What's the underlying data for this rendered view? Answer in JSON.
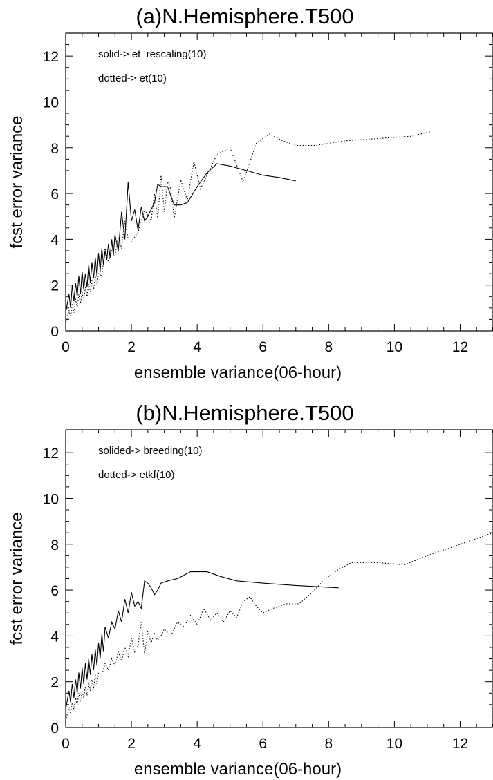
{
  "chart_data": [
    {
      "type": "line",
      "title": "(a)N.Hemisphere.T500",
      "xlabel": "ensemble variance(06-hour)",
      "ylabel": "fcst error variance",
      "xlim": [
        0,
        13
      ],
      "ylim": [
        0,
        13
      ],
      "xticks": [
        0,
        2,
        4,
        6,
        8,
        10,
        12
      ],
      "yticks": [
        0,
        2,
        4,
        6,
        8,
        10,
        12
      ],
      "grid": false,
      "annotations": [
        "solid-> et_rescaling(10)",
        "dotted-> et(10)"
      ],
      "series": [
        {
          "style": "solid",
          "x": [
            0.0,
            0.1,
            0.15,
            0.2,
            0.25,
            0.3,
            0.35,
            0.4,
            0.45,
            0.5,
            0.55,
            0.6,
            0.65,
            0.7,
            0.75,
            0.8,
            0.85,
            0.9,
            0.95,
            1.0,
            1.05,
            1.1,
            1.15,
            1.2,
            1.25,
            1.3,
            1.35,
            1.4,
            1.45,
            1.5,
            1.6,
            1.7,
            1.8,
            1.9,
            2.0,
            2.1,
            2.2,
            2.3,
            2.4,
            2.5,
            2.6,
            2.7,
            2.8,
            2.9,
            3.1,
            3.3,
            3.5,
            3.7,
            4.0,
            4.3,
            4.6,
            5.0,
            5.5,
            6.0,
            6.5,
            7.0
          ],
          "y": [
            0.8,
            1.6,
            1.0,
            2.0,
            1.3,
            2.1,
            1.5,
            2.4,
            1.6,
            2.6,
            1.8,
            2.5,
            1.9,
            2.9,
            2.1,
            3.0,
            2.3,
            3.2,
            2.4,
            3.4,
            2.6,
            3.6,
            2.9,
            3.5,
            3.1,
            3.8,
            3.2,
            4.0,
            3.3,
            4.2,
            3.5,
            5.2,
            4.0,
            6.5,
            4.8,
            5.3,
            4.4,
            5.4,
            4.8,
            5.0,
            5.3,
            5.6,
            6.4,
            6.3,
            6.3,
            5.5,
            5.5,
            5.6,
            6.3,
            6.9,
            7.3,
            7.2,
            7.0,
            6.8,
            6.7,
            6.55
          ]
        },
        {
          "style": "dotted",
          "x": [
            0.0,
            0.1,
            0.15,
            0.2,
            0.25,
            0.3,
            0.35,
            0.4,
            0.45,
            0.5,
            0.55,
            0.6,
            0.65,
            0.7,
            0.75,
            0.8,
            0.85,
            0.9,
            0.95,
            1.0,
            1.1,
            1.2,
            1.3,
            1.4,
            1.5,
            1.6,
            1.7,
            1.8,
            1.9,
            2.0,
            2.2,
            2.4,
            2.6,
            2.7,
            2.8,
            2.9,
            3.0,
            3.1,
            3.2,
            3.3,
            3.5,
            3.7,
            3.9,
            4.1,
            4.3,
            4.6,
            5.0,
            5.4,
            5.8,
            6.2,
            6.6,
            7.0,
            7.6,
            8.5,
            9.5,
            10.5,
            11.1
          ],
          "y": [
            0.3,
            0.9,
            0.6,
            1.2,
            0.8,
            1.4,
            1.0,
            1.6,
            1.2,
            1.7,
            1.3,
            1.9,
            1.5,
            2.1,
            1.7,
            2.2,
            1.8,
            2.4,
            2.0,
            2.5,
            2.4,
            3.6,
            3.0,
            3.5,
            3.3,
            4.1,
            3.6,
            4.8,
            4.0,
            3.9,
            4.3,
            5.3,
            4.8,
            6.0,
            4.9,
            6.8,
            5.2,
            6.5,
            6.2,
            4.9,
            6.6,
            5.7,
            7.4,
            6.2,
            6.8,
            7.7,
            8.0,
            6.5,
            8.2,
            8.6,
            8.3,
            8.1,
            8.1,
            8.3,
            8.4,
            8.5,
            8.7
          ]
        }
      ]
    },
    {
      "type": "line",
      "title": "(b)N.Hemisphere.T500",
      "xlabel": "ensemble variance(06-hour)",
      "ylabel": "fcst error variance",
      "xlim": [
        0,
        13
      ],
      "ylim": [
        0,
        13
      ],
      "xticks": [
        0,
        2,
        4,
        6,
        8,
        10,
        12
      ],
      "yticks": [
        0,
        2,
        4,
        6,
        8,
        10,
        12
      ],
      "grid": false,
      "annotations": [
        "solided-> breeding(10)",
        "dotted-> etkf(10)"
      ],
      "series": [
        {
          "style": "solid",
          "x": [
            0.0,
            0.1,
            0.15,
            0.2,
            0.25,
            0.3,
            0.35,
            0.4,
            0.45,
            0.5,
            0.55,
            0.6,
            0.65,
            0.7,
            0.75,
            0.8,
            0.85,
            0.9,
            0.95,
            1.0,
            1.05,
            1.1,
            1.15,
            1.2,
            1.3,
            1.4,
            1.5,
            1.6,
            1.7,
            1.8,
            1.9,
            2.0,
            2.1,
            2.2,
            2.3,
            2.4,
            2.5,
            2.6,
            2.7,
            2.8,
            2.9,
            3.1,
            3.4,
            3.8,
            4.3,
            4.7,
            5.2,
            6.0,
            7.0,
            8.3
          ],
          "y": [
            0.8,
            1.6,
            1.1,
            1.9,
            1.3,
            2.1,
            1.5,
            2.4,
            1.7,
            2.6,
            1.9,
            2.8,
            2.1,
            3.0,
            2.3,
            3.2,
            2.5,
            3.4,
            2.7,
            3.7,
            3.0,
            4.1,
            3.3,
            4.4,
            3.9,
            4.6,
            4.3,
            5.1,
            4.6,
            5.6,
            5.0,
            5.9,
            5.3,
            5.5,
            5.2,
            6.4,
            6.3,
            6.1,
            5.8,
            6.0,
            6.3,
            6.4,
            6.5,
            6.8,
            6.8,
            6.6,
            6.4,
            6.3,
            6.2,
            6.1
          ]
        },
        {
          "style": "dotted",
          "x": [
            0.0,
            0.1,
            0.15,
            0.2,
            0.25,
            0.3,
            0.35,
            0.4,
            0.45,
            0.5,
            0.55,
            0.6,
            0.65,
            0.7,
            0.75,
            0.8,
            0.85,
            0.9,
            0.95,
            1.0,
            1.1,
            1.2,
            1.3,
            1.4,
            1.5,
            1.6,
            1.7,
            1.8,
            1.9,
            2.0,
            2.1,
            2.2,
            2.3,
            2.4,
            2.5,
            2.6,
            2.7,
            2.8,
            2.9,
            3.0,
            3.2,
            3.4,
            3.6,
            3.8,
            4.0,
            4.2,
            4.4,
            4.6,
            4.8,
            5.0,
            5.2,
            5.4,
            5.6,
            5.8,
            6.0,
            6.3,
            6.7,
            7.1,
            7.5,
            7.9,
            8.3,
            8.7,
            9.5,
            10.3,
            11.0,
            12.0,
            13.0
          ],
          "y": [
            0.3,
            0.9,
            0.6,
            1.1,
            0.8,
            1.3,
            1.0,
            1.5,
            1.1,
            1.6,
            1.3,
            1.8,
            1.4,
            2.0,
            1.6,
            2.1,
            1.7,
            2.3,
            1.9,
            2.4,
            2.3,
            2.8,
            2.5,
            3.0,
            2.7,
            3.3,
            2.9,
            3.5,
            3.1,
            3.9,
            3.3,
            3.6,
            4.6,
            3.2,
            4.2,
            3.7,
            4.1,
            3.8,
            4.0,
            4.3,
            4.0,
            4.6,
            4.4,
            4.9,
            4.5,
            5.2,
            4.7,
            5.0,
            4.6,
            5.1,
            4.8,
            5.5,
            5.7,
            5.3,
            5.0,
            5.2,
            5.4,
            5.4,
            5.9,
            6.5,
            6.9,
            7.2,
            7.2,
            7.1,
            7.5,
            8.0,
            8.5
          ]
        }
      ]
    }
  ]
}
